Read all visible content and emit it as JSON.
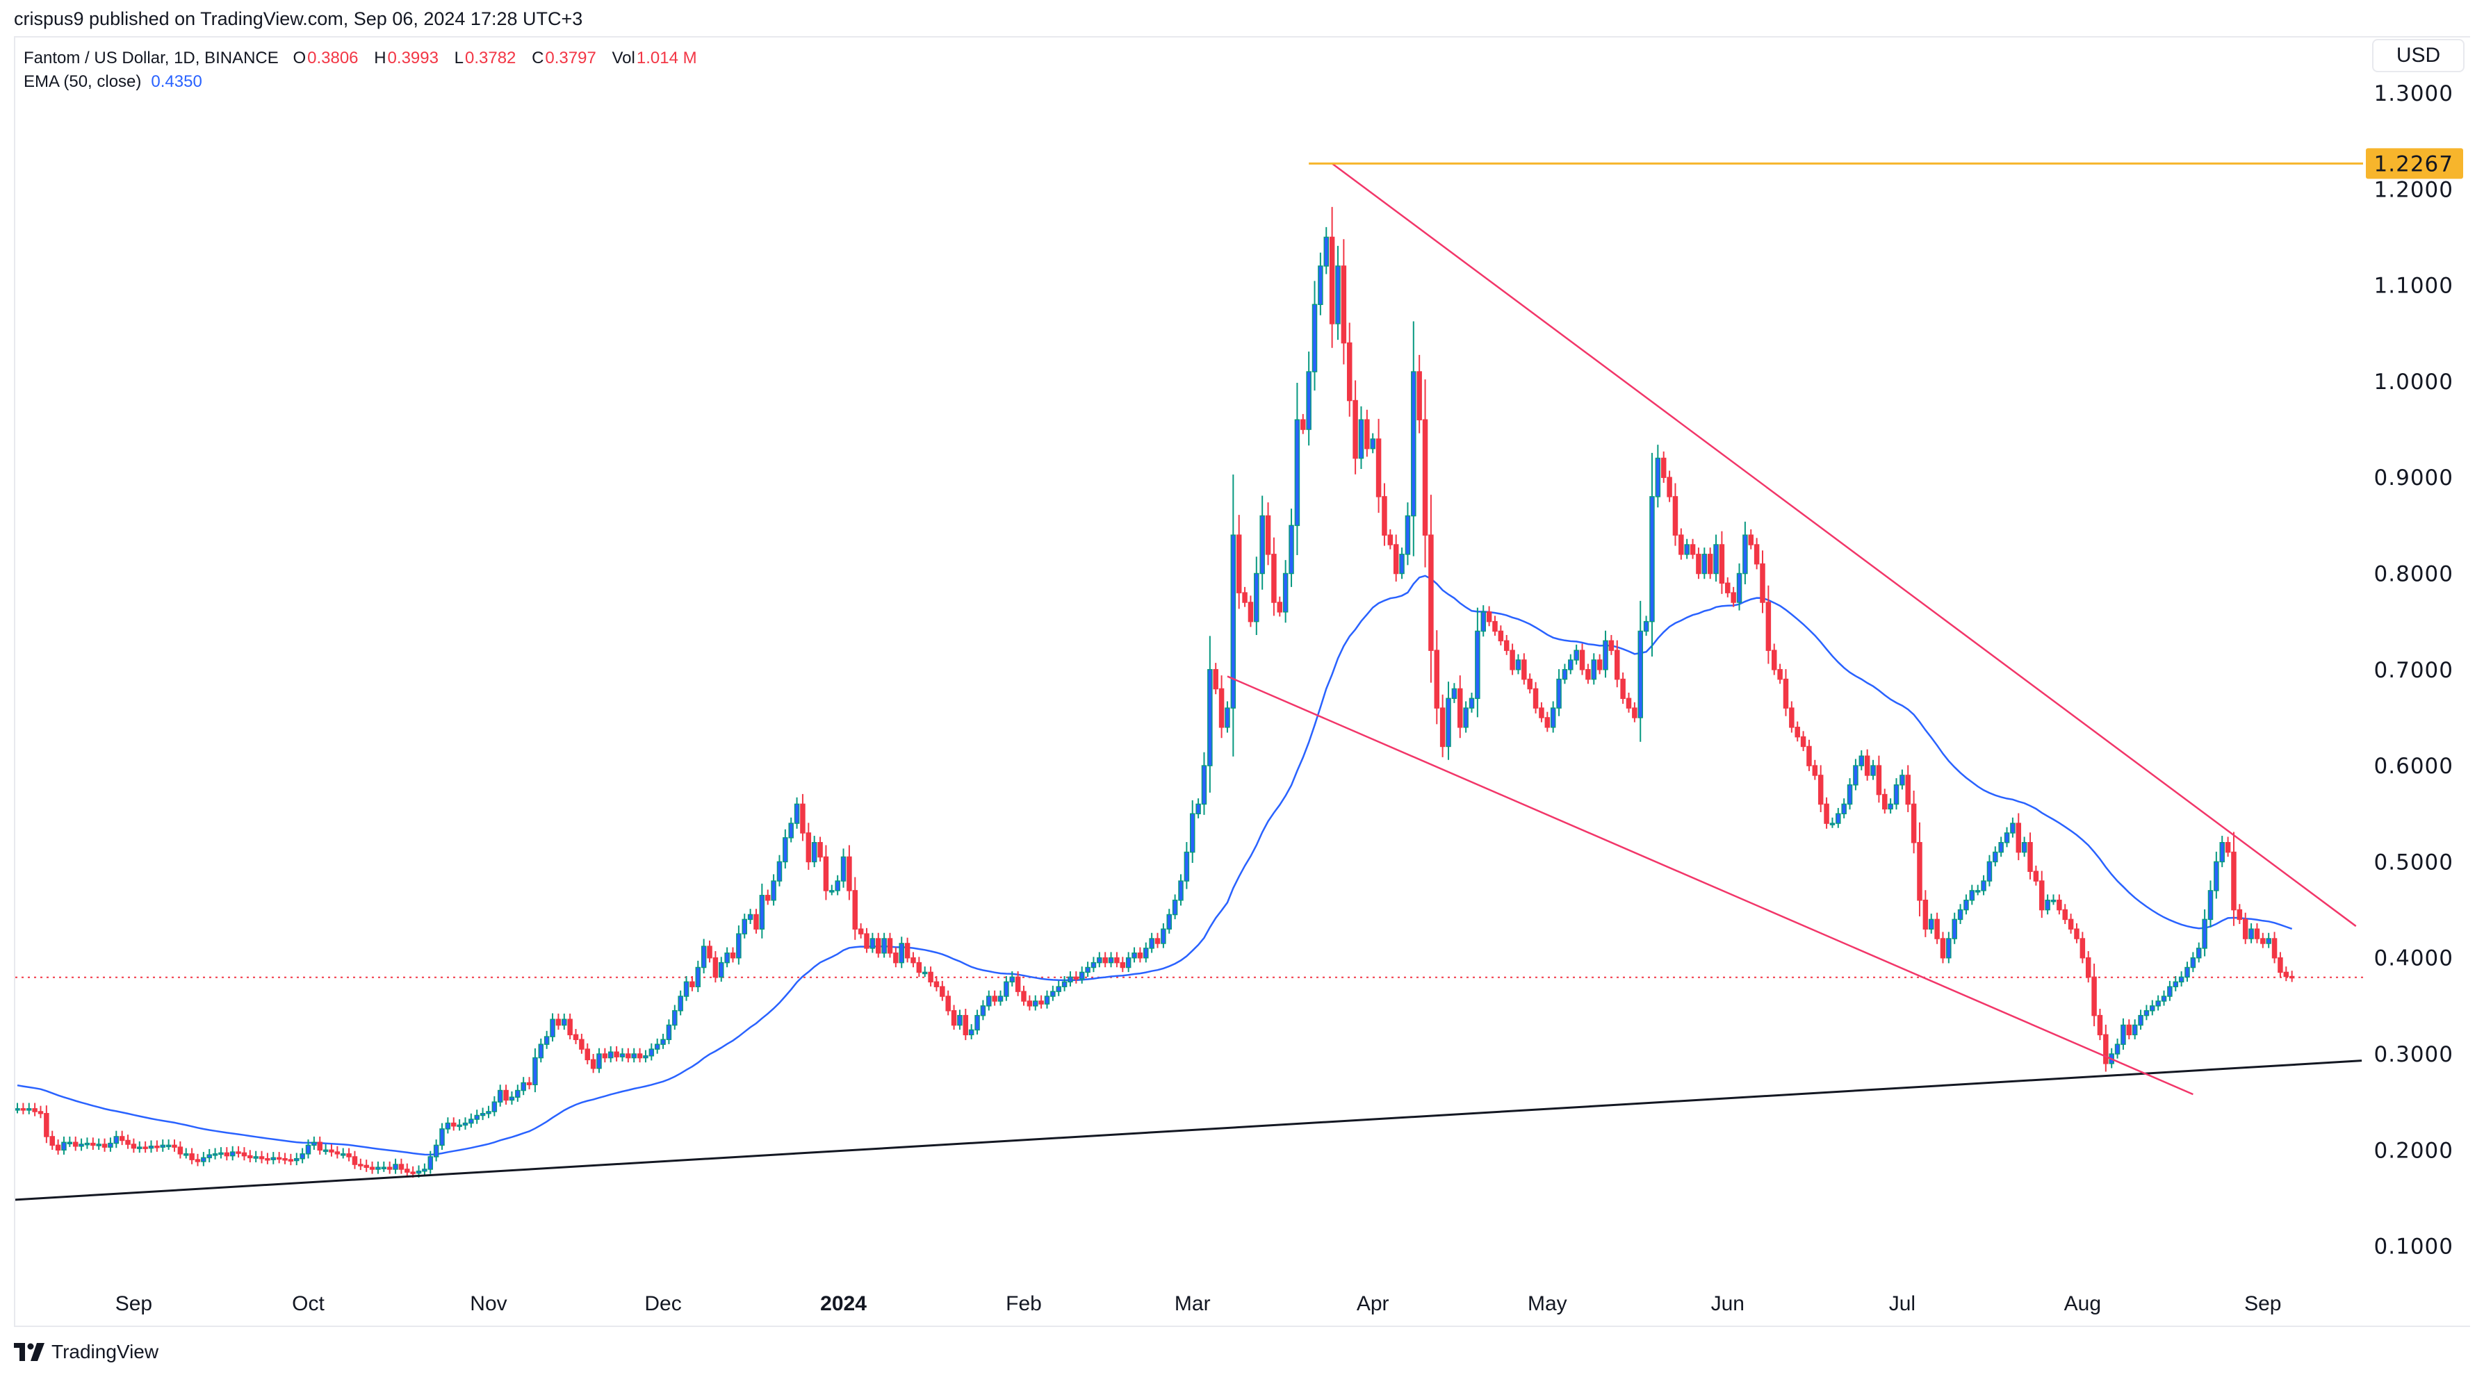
{
  "header": {
    "published": "crispus9 published on TradingView.com, Sep 06, 2024 17:28 UTC+3"
  },
  "legend": {
    "symbol": "Fantom / US Dollar, 1D, BINANCE",
    "o_label": "O",
    "o": "0.3806",
    "h_label": "H",
    "h": "0.3993",
    "l_label": "L",
    "l": "0.3782",
    "c_label": "C",
    "c": "0.3797",
    "vol_label": "Vol",
    "vol": "1.014 M",
    "ema_label": "EMA (50, close)",
    "ema": "0.4350"
  },
  "footer": {
    "brand": "TradingView",
    "logo_icon": "tradingview-logo-icon"
  },
  "colors": {
    "up_border": "#089981",
    "up_body": "#2962ff",
    "down": "#f23645",
    "ema": "#2962ff",
    "resistance": "#f7b52c",
    "trendline": "#f23669",
    "support": "#131722"
  },
  "chart_data": {
    "type": "candlestick",
    "currency": "USD",
    "y_ticks": [
      "1.3000",
      "1.2000",
      "1.1000",
      "1.0000",
      "0.9000",
      "0.8000",
      "0.7000",
      "0.6000",
      "0.5000",
      "0.4000",
      "0.3000",
      "0.2000",
      "0.1000"
    ],
    "ylim": [
      0.08,
      1.33
    ],
    "x_ticks": [
      {
        "label": "Sep",
        "date": "2023-09-01"
      },
      {
        "label": "Oct",
        "date": "2023-10-01"
      },
      {
        "label": "Nov",
        "date": "2023-11-01"
      },
      {
        "label": "Dec",
        "date": "2023-12-01"
      },
      {
        "label": "2024",
        "date": "2024-01-01",
        "bold": true
      },
      {
        "label": "Feb",
        "date": "2024-02-01"
      },
      {
        "label": "Mar",
        "date": "2024-03-01"
      },
      {
        "label": "Apr",
        "date": "2024-04-01"
      },
      {
        "label": "May",
        "date": "2024-05-01"
      },
      {
        "label": "Jun",
        "date": "2024-06-01"
      },
      {
        "label": "Jul",
        "date": "2024-07-01"
      },
      {
        "label": "Aug",
        "date": "2024-08-01"
      },
      {
        "label": "Sep",
        "date": "2024-09-01"
      }
    ],
    "daily_close": [
      0.243,
      0.242,
      0.243,
      0.24,
      0.238,
      0.214,
      0.205,
      0.2,
      0.208,
      0.208,
      0.204,
      0.206,
      0.207,
      0.205,
      0.206,
      0.203,
      0.207,
      0.214,
      0.21,
      0.206,
      0.202,
      0.203,
      0.202,
      0.204,
      0.203,
      0.205,
      0.205,
      0.203,
      0.196,
      0.196,
      0.19,
      0.188,
      0.192,
      0.195,
      0.196,
      0.197,
      0.194,
      0.198,
      0.197,
      0.194,
      0.192,
      0.193,
      0.191,
      0.19,
      0.192,
      0.191,
      0.19,
      0.189,
      0.191,
      0.196,
      0.205,
      0.208,
      0.2,
      0.2,
      0.198,
      0.196,
      0.196,
      0.193,
      0.185,
      0.184,
      0.182,
      0.18,
      0.182,
      0.182,
      0.18,
      0.185,
      0.18,
      0.177,
      0.176,
      0.178,
      0.18,
      0.193,
      0.205,
      0.222,
      0.228,
      0.225,
      0.226,
      0.228,
      0.232,
      0.236,
      0.238,
      0.24,
      0.25,
      0.262,
      0.252,
      0.255,
      0.262,
      0.27,
      0.268,
      0.296,
      0.31,
      0.318,
      0.336,
      0.33,
      0.336,
      0.32,
      0.315,
      0.305,
      0.294,
      0.285,
      0.3,
      0.296,
      0.302,
      0.297,
      0.3,
      0.296,
      0.3,
      0.296,
      0.298,
      0.305,
      0.31,
      0.315,
      0.33,
      0.345,
      0.36,
      0.375,
      0.37,
      0.39,
      0.412,
      0.4,
      0.38,
      0.395,
      0.405,
      0.4,
      0.425,
      0.44,
      0.445,
      0.43,
      0.465,
      0.46,
      0.48,
      0.5,
      0.525,
      0.54,
      0.56,
      0.53,
      0.5,
      0.52,
      0.505,
      0.47,
      0.47,
      0.48,
      0.505,
      0.47,
      0.43,
      0.425,
      0.41,
      0.42,
      0.405,
      0.42,
      0.405,
      0.395,
      0.415,
      0.4,
      0.395,
      0.385,
      0.385,
      0.375,
      0.37,
      0.36,
      0.345,
      0.33,
      0.34,
      0.32,
      0.325,
      0.34,
      0.35,
      0.36,
      0.355,
      0.36,
      0.375,
      0.38,
      0.365,
      0.355,
      0.35,
      0.355,
      0.352,
      0.36,
      0.365,
      0.37,
      0.375,
      0.38,
      0.378,
      0.385,
      0.39,
      0.395,
      0.4,
      0.395,
      0.4,
      0.395,
      0.39,
      0.4,
      0.405,
      0.4,
      0.41,
      0.42,
      0.415,
      0.43,
      0.445,
      0.46,
      0.48,
      0.51,
      0.55,
      0.56,
      0.6,
      0.7,
      0.68,
      0.64,
      0.66,
      0.84,
      0.78,
      0.77,
      0.75,
      0.8,
      0.86,
      0.82,
      0.77,
      0.76,
      0.8,
      0.85,
      0.96,
      0.95,
      1.01,
      1.08,
      1.12,
      1.15,
      1.06,
      1.12,
      1.04,
      0.98,
      0.92,
      0.96,
      0.93,
      0.94,
      0.88,
      0.84,
      0.83,
      0.8,
      0.82,
      0.86,
      1.01,
      0.96,
      0.84,
      0.72,
      0.66,
      0.62,
      0.67,
      0.68,
      0.64,
      0.66,
      0.67,
      0.74,
      0.76,
      0.75,
      0.74,
      0.73,
      0.72,
      0.7,
      0.71,
      0.69,
      0.68,
      0.66,
      0.65,
      0.64,
      0.66,
      0.69,
      0.7,
      0.71,
      0.72,
      0.7,
      0.69,
      0.71,
      0.7,
      0.73,
      0.72,
      0.69,
      0.67,
      0.66,
      0.65,
      0.74,
      0.75,
      0.88,
      0.92,
      0.9,
      0.88,
      0.84,
      0.82,
      0.83,
      0.82,
      0.8,
      0.82,
      0.8,
      0.83,
      0.79,
      0.78,
      0.77,
      0.8,
      0.84,
      0.83,
      0.81,
      0.77,
      0.72,
      0.7,
      0.69,
      0.66,
      0.64,
      0.63,
      0.62,
      0.6,
      0.59,
      0.56,
      0.54,
      0.54,
      0.55,
      0.56,
      0.58,
      0.6,
      0.61,
      0.59,
      0.6,
      0.57,
      0.555,
      0.56,
      0.58,
      0.59,
      0.56,
      0.52,
      0.46,
      0.43,
      0.44,
      0.42,
      0.4,
      0.42,
      0.44,
      0.45,
      0.46,
      0.47,
      0.47,
      0.48,
      0.5,
      0.51,
      0.52,
      0.53,
      0.54,
      0.51,
      0.52,
      0.49,
      0.48,
      0.45,
      0.46,
      0.46,
      0.45,
      0.44,
      0.43,
      0.42,
      0.4,
      0.38,
      0.34,
      0.32,
      0.29,
      0.3,
      0.31,
      0.33,
      0.32,
      0.33,
      0.34,
      0.345,
      0.35,
      0.355,
      0.36,
      0.37,
      0.375,
      0.38,
      0.39,
      0.4,
      0.41,
      0.44,
      0.47,
      0.5,
      0.52,
      0.51,
      0.45,
      0.44,
      0.42,
      0.43,
      0.42,
      0.415,
      0.42,
      0.4,
      0.385,
      0.3806,
      0.3797
    ],
    "last_price": 0.3797,
    "indicator": {
      "name": "EMA (50, close)",
      "period": 50,
      "last": 0.435
    },
    "drawings": {
      "resistance_level": {
        "price": 1.2267,
        "label": "1.2267",
        "from": "2024-03-21"
      },
      "upper_trendline": {
        "from": [
          "2024-03-25",
          1.2267
        ],
        "to": [
          "2024-09-17",
          0.433
        ]
      },
      "lower_trendline": {
        "from": [
          "2024-03-07",
          0.693
        ],
        "to": [
          "2024-08-20",
          0.258
        ]
      },
      "support_line": {
        "from": [
          "2023-08-11",
          0.148
        ],
        "to": [
          "2024-09-18",
          0.293
        ]
      }
    }
  }
}
